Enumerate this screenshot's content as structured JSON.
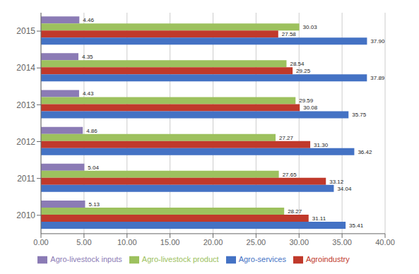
{
  "chart_data": {
    "type": "bar",
    "orientation": "horizontal",
    "categories": [
      "2010",
      "2011",
      "2012",
      "2013",
      "2014",
      "2015"
    ],
    "series": [
      {
        "name": "Agro-livestock inputs",
        "color": "#8b7bb5",
        "values": [
          5.13,
          5.04,
          4.86,
          4.43,
          4.35,
          4.46
        ],
        "value_labels": [
          "5.13",
          "5.04",
          "4.86",
          "4.43",
          "4.35",
          "4.46"
        ]
      },
      {
        "name": "Agro-livestock product",
        "color": "#9dc15e",
        "values": [
          28.27,
          27.65,
          27.27,
          29.59,
          28.54,
          30.03
        ],
        "value_labels": [
          "28.27",
          "27.65",
          "27.27",
          "29.59",
          "28.54",
          "30.03"
        ]
      },
      {
        "name": "Agroindustry",
        "color": "#c0392b",
        "values": [
          31.11,
          33.12,
          31.3,
          30.08,
          29.25,
          27.58
        ],
        "value_labels": [
          "31.11",
          "33.12",
          "31.30",
          "30.08",
          "29.25",
          "27.58"
        ]
      },
      {
        "name": "Agro-services",
        "color": "#4472c4",
        "values": [
          35.41,
          34.04,
          36.42,
          35.75,
          37.89,
          37.9
        ],
        "value_labels": [
          "35.41",
          "34.04",
          "36.42",
          "35.75",
          "37.89",
          "37.90"
        ]
      }
    ],
    "xlim": [
      0,
      40
    ],
    "xticks": [
      {
        "value": 0,
        "label": "0.00"
      },
      {
        "value": 5,
        "label": "5.00"
      },
      {
        "value": 10,
        "label": "10.00"
      },
      {
        "value": 15,
        "label": "15.00"
      },
      {
        "value": 20,
        "label": "20.00"
      },
      {
        "value": 25,
        "label": "25.00"
      },
      {
        "value": 30,
        "label": "30.00"
      },
      {
        "value": 35,
        "label": "35.00"
      },
      {
        "value": 40,
        "label": "40.00"
      }
    ],
    "grid": true,
    "legend": "bottom",
    "data_labels": true
  }
}
